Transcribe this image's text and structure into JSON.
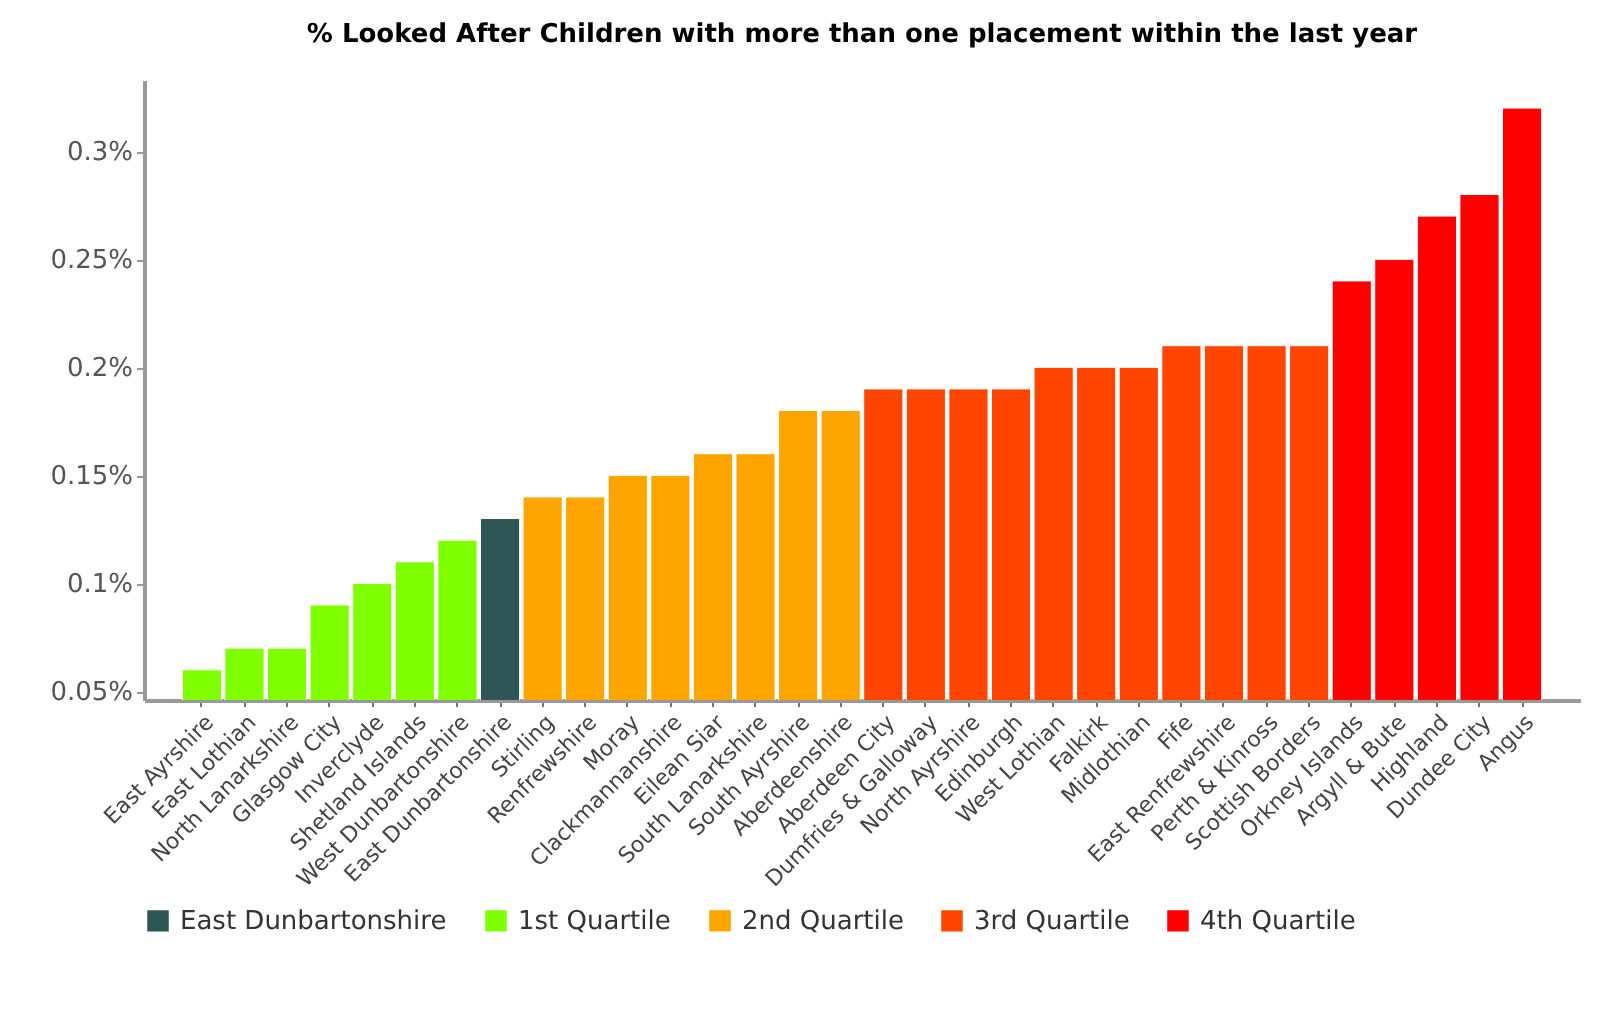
{
  "chart_data": {
    "type": "bar",
    "title": "% Looked After Children with more than one placement within the last year",
    "categories": [
      "East Ayrshire",
      "East Lothian",
      "North Lanarkshire",
      "Glasgow City",
      "Inverclyde",
      "Shetland Islands",
      "West Dunbartonshire",
      "East Dunbartonshire",
      "Stirling",
      "Renfrewshire",
      "Moray",
      "Clackmannanshire",
      "Eilean Siar",
      "South Lanarkshire",
      "South Ayrshire",
      "Aberdeenshire",
      "Aberdeen City",
      "Dumfries & Galloway",
      "North Ayrshire",
      "Edinburgh",
      "West Lothian",
      "Falkirk",
      "Midlothian",
      "Fife",
      "East Renfrewshire",
      "Perth & Kinross",
      "Scottish Borders",
      "Orkney Islands",
      "Argyll & Bute",
      "Highland",
      "Dundee City",
      "Angus"
    ],
    "series": [
      {
        "name": "East Dunbartonshire",
        "color": "#2f5656",
        "values": [
          null,
          null,
          null,
          null,
          null,
          null,
          null,
          0.13,
          null,
          null,
          null,
          null,
          null,
          null,
          null,
          null,
          null,
          null,
          null,
          null,
          null,
          null,
          null,
          null,
          null,
          null,
          null,
          null,
          null,
          null,
          null,
          null
        ]
      },
      {
        "name": "1st Quartile",
        "color": "#80ff00",
        "values": [
          0.06,
          0.07,
          0.07,
          0.09,
          0.1,
          0.11,
          0.12,
          null,
          null,
          null,
          null,
          null,
          null,
          null,
          null,
          null,
          null,
          null,
          null,
          null,
          null,
          null,
          null,
          null,
          null,
          null,
          null,
          null,
          null,
          null,
          null,
          null
        ]
      },
      {
        "name": "2nd Quartile",
        "color": "#ffa500",
        "values": [
          null,
          null,
          null,
          null,
          null,
          null,
          null,
          null,
          0.14,
          0.14,
          0.15,
          0.15,
          0.16,
          0.16,
          0.18,
          0.18,
          null,
          null,
          null,
          null,
          null,
          null,
          null,
          null,
          null,
          null,
          null,
          null,
          null,
          null,
          null,
          null
        ]
      },
      {
        "name": "3rd Quartile",
        "color": "#ff4500",
        "values": [
          null,
          null,
          null,
          null,
          null,
          null,
          null,
          null,
          null,
          null,
          null,
          null,
          null,
          null,
          null,
          null,
          0.19,
          0.19,
          0.19,
          0.19,
          0.2,
          0.2,
          0.2,
          0.21,
          0.21,
          0.21,
          0.21,
          null,
          null,
          null,
          null,
          null
        ]
      },
      {
        "name": "4th Quartile",
        "color": "#ff0000",
        "values": [
          null,
          null,
          null,
          null,
          null,
          null,
          null,
          null,
          null,
          null,
          null,
          null,
          null,
          null,
          null,
          null,
          null,
          null,
          null,
          null,
          null,
          null,
          null,
          null,
          null,
          null,
          null,
          0.24,
          0.25,
          0.27,
          0.28,
          0.32
        ]
      }
    ],
    "stacked": true,
    "ylim": [
      0.046,
      0.333
    ],
    "yticks": [
      {
        "value": 0.05,
        "label": "0.05%"
      },
      {
        "value": 0.1,
        "label": "0.1%"
      },
      {
        "value": 0.15,
        "label": "0.15%"
      },
      {
        "value": 0.2,
        "label": "0.2%"
      },
      {
        "value": 0.25,
        "label": "0.25%"
      },
      {
        "value": 0.3,
        "label": "0.3%"
      }
    ],
    "grid": false,
    "legend": "bottom"
  }
}
